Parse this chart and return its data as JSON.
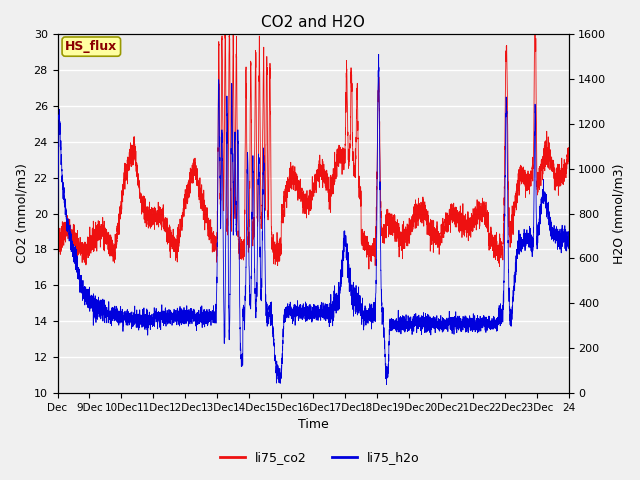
{
  "title": "CO2 and H2O",
  "xlabel": "Time",
  "ylabel_left": "CO2 (mmol/m3)",
  "ylabel_right": "H2O (mmol/m3)",
  "xlim": [
    0,
    16
  ],
  "ylim_left": [
    10,
    30
  ],
  "ylim_right": [
    0,
    1600
  ],
  "xtick_labels": [
    "Dec",
    "9Dec",
    "10Dec",
    "11Dec",
    "12Dec",
    "13Dec",
    "14Dec",
    "15Dec",
    "16Dec",
    "17Dec",
    "18Dec",
    "19Dec",
    "20Dec",
    "21Dec",
    "22Dec",
    "23Dec",
    "24"
  ],
  "yticks_left": [
    10,
    12,
    14,
    16,
    18,
    20,
    22,
    24,
    26,
    28,
    30
  ],
  "yticks_right": [
    0,
    200,
    400,
    600,
    800,
    1000,
    1200,
    1400,
    1600
  ],
  "annotation_text": "HS_flux",
  "annotation_color": "#8B0000",
  "annotation_bg": "#FFFFA0",
  "bg_color": "#E8E8E8",
  "plot_bg": "#EBEBEB",
  "grid_color": "white",
  "co2_color": "#EE1111",
  "h2o_color": "#0000DD",
  "legend_labels": [
    "li75_co2",
    "li75_h2o"
  ],
  "title_fontsize": 11,
  "label_fontsize": 9
}
